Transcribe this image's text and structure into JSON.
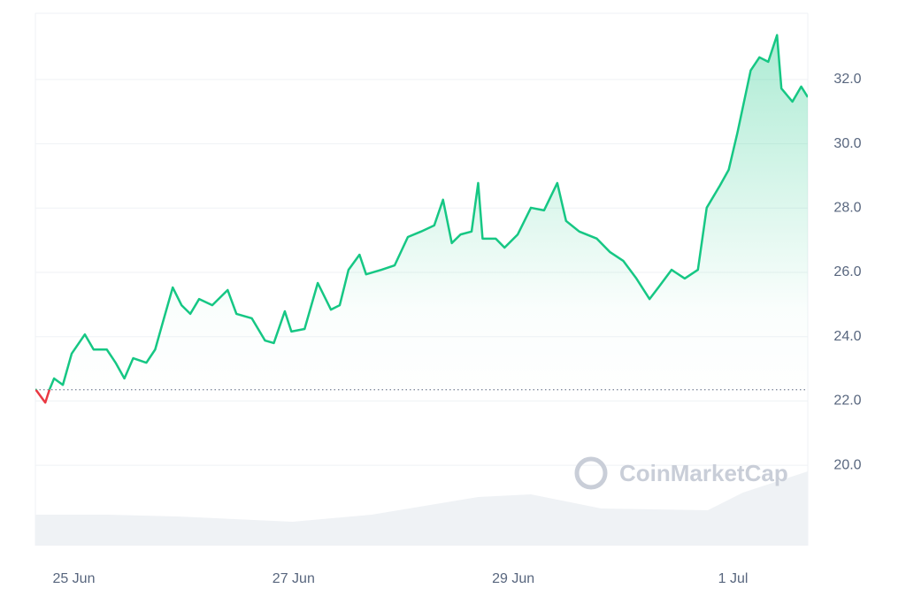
{
  "chart_data": {
    "type": "line",
    "watermark": "CoinMarketCap",
    "x": [
      -0.35,
      -0.26,
      -0.22,
      -0.18,
      -0.1,
      -0.02,
      0.1,
      0.18,
      0.3,
      0.38,
      0.46,
      0.54,
      0.66,
      0.74,
      0.82,
      0.9,
      0.98,
      1.06,
      1.14,
      1.26,
      1.4,
      1.48,
      1.62,
      1.74,
      1.82,
      1.92,
      1.98,
      2.1,
      2.22,
      2.34,
      2.42,
      2.5,
      2.6,
      2.66,
      2.8,
      2.92,
      3.04,
      3.16,
      3.28,
      3.36,
      3.44,
      3.52,
      3.62,
      3.68,
      3.72,
      3.84,
      3.92,
      4.04,
      4.16,
      4.28,
      4.4,
      4.48,
      4.6,
      4.76,
      4.88,
      5.0,
      5.12,
      5.24,
      5.32,
      5.44,
      5.56,
      5.68,
      5.76,
      5.88,
      5.96,
      6.04,
      6.16,
      6.24,
      6.32,
      6.4,
      6.44,
      6.54,
      6.62,
      6.68
    ],
    "series": [
      {
        "color": "#16c784",
        "down_color": "#ea3943",
        "values": [
          22.37,
          21.95,
          22.37,
          22.7,
          22.5,
          23.47,
          24.07,
          23.6,
          23.6,
          23.19,
          22.7,
          23.33,
          23.19,
          23.6,
          24.57,
          25.53,
          24.98,
          24.71,
          25.17,
          24.98,
          25.45,
          24.71,
          24.57,
          23.88,
          23.8,
          24.79,
          24.16,
          24.24,
          25.67,
          24.84,
          24.98,
          26.08,
          26.55,
          25.94,
          26.08,
          26.22,
          27.1,
          27.27,
          27.46,
          28.26,
          26.91,
          27.18,
          27.27,
          28.78,
          27.05,
          27.05,
          26.77,
          27.18,
          28.01,
          27.93,
          28.78,
          27.6,
          27.27,
          27.05,
          26.63,
          26.36,
          25.81,
          25.17,
          25.53,
          26.08,
          25.81,
          26.08,
          28.01,
          28.7,
          29.19,
          30.35,
          32.28,
          32.69,
          32.55,
          33.38,
          31.72,
          31.31,
          31.78,
          31.45
        ]
      }
    ],
    "baseline": 22.35,
    "volume": {
      "color": "#eff2f5",
      "x": [
        -0.35,
        0.3,
        0.94,
        1.99,
        2.71,
        3.68,
        4.16,
        4.8,
        5.77,
        6.09,
        6.68
      ],
      "values": [
        35,
        35,
        33,
        27,
        35,
        55,
        58,
        42,
        40,
        60,
        84
      ],
      "ylim": [
        0,
        100
      ]
    },
    "xlim": [
      -0.35,
      6.68
    ],
    "xticks": [
      {
        "value": 0,
        "label": "25 Jun"
      },
      {
        "value": 2,
        "label": "27 Jun"
      },
      {
        "value": 4,
        "label": "29 Jun"
      },
      {
        "value": 6,
        "label": "1 Jul"
      }
    ],
    "ylim": [
      17.5,
      34.06
    ],
    "yticks": [
      {
        "value": 20,
        "label": "20.0"
      },
      {
        "value": 22,
        "label": "22.0"
      },
      {
        "value": 24,
        "label": "24.0"
      },
      {
        "value": 26,
        "label": "26.0"
      },
      {
        "value": 28,
        "label": "28.0"
      },
      {
        "value": 30,
        "label": "30.0"
      },
      {
        "value": 32,
        "label": "32.0"
      }
    ],
    "grid": true
  }
}
